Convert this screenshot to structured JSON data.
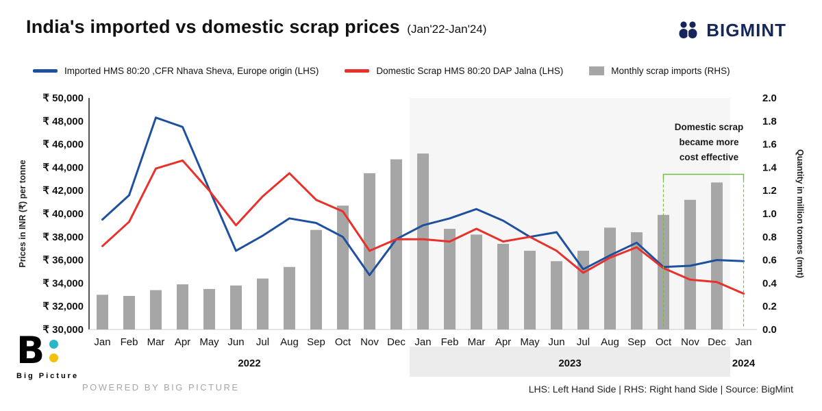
{
  "header": {
    "title": "India's imported vs domestic scrap prices",
    "subtitle": "(Jan'22-Jan'24)",
    "brand": "BIGMINT",
    "brand_color": "#14265c"
  },
  "legend": {
    "items": [
      {
        "label": "Imported HMS 80:20 ,CFR Nhava Sheva, Europe origin (LHS)"
      },
      {
        "label": "Domestic Scrap HMS 80:20 DAP Jalna (LHS)"
      },
      {
        "label": "Monthly scrap imports (RHS)"
      }
    ]
  },
  "chart_data": {
    "type": "combo",
    "title": "India's imported vs domestic scrap prices (Jan'22-Jan'24)",
    "months": [
      "Jan",
      "Feb",
      "Mar",
      "Apr",
      "May",
      "Jun",
      "Jul",
      "Aug",
      "Sep",
      "Oct",
      "Nov",
      "Dec",
      "Jan",
      "Feb",
      "Mar",
      "Apr",
      "May",
      "Jun",
      "Jul",
      "Aug",
      "Sep",
      "Oct",
      "Nov",
      "Dec",
      "Jan"
    ],
    "year_groups": [
      {
        "label": "2022",
        "start": 0,
        "end": 11,
        "shaded": false
      },
      {
        "label": "2023",
        "start": 12,
        "end": 23,
        "shaded": true
      },
      {
        "label": "2024",
        "start": 24,
        "end": 24,
        "shaded": false
      }
    ],
    "series": [
      {
        "name": "Imported HMS 80:20 ,CFR Nhava Sheva, Europe origin (LHS)",
        "type": "line",
        "axis": "left",
        "color": "#1d509e",
        "values": [
          39500,
          41600,
          48300,
          47500,
          42100,
          36800,
          38100,
          39600,
          39200,
          38000,
          34700,
          37800,
          39000,
          39600,
          40400,
          39400,
          38000,
          38400,
          35200,
          36400,
          37500,
          35400,
          35500,
          36000,
          35900
        ]
      },
      {
        "name": "Domestic Scrap HMS 80:20 DAP Jalna (LHS)",
        "type": "line",
        "axis": "left",
        "color": "#e8312a",
        "values": [
          37200,
          39300,
          43900,
          44600,
          42000,
          39000,
          41500,
          43500,
          41200,
          40200,
          36800,
          37800,
          37800,
          37600,
          38700,
          37600,
          38000,
          36800,
          34900,
          36200,
          37100,
          35300,
          34300,
          34100,
          33100
        ]
      },
      {
        "name": "Monthly scrap imports (RHS)",
        "type": "bar",
        "axis": "right",
        "color": "#a6a6a6",
        "values": [
          0.3,
          0.29,
          0.34,
          0.39,
          0.35,
          0.38,
          0.44,
          0.54,
          0.86,
          1.07,
          1.35,
          1.47,
          1.52,
          0.87,
          0.82,
          0.74,
          0.68,
          0.59,
          0.68,
          0.88,
          0.84,
          0.99,
          1.12,
          1.27,
          null
        ]
      }
    ],
    "left_axis": {
      "label": "Prices in INR (₹) per tonne",
      "min": 30000,
      "max": 50000,
      "step": 2000,
      "tick_prefix": "₹ "
    },
    "right_axis": {
      "label": "Quantity in million tonnes (mnt)",
      "min": 0,
      "max": 2.0,
      "step": 0.2
    },
    "annotation": {
      "text_lines": [
        "Domestic scrap",
        "became more",
        "cost effective"
      ],
      "bracket_color": "#76b947",
      "bracket_start": 21,
      "bracket_end": 24,
      "bracket_top": 1.34
    },
    "grid": false,
    "legend_position": "top"
  },
  "footer": {
    "logo_text": "Big Picture",
    "logo_b": "B",
    "powered_by": "POWERED BY BIG PICTURE",
    "note": "LHS: Left Hand Side  |  RHS: Right hand Side  |  Source: BigMint"
  }
}
